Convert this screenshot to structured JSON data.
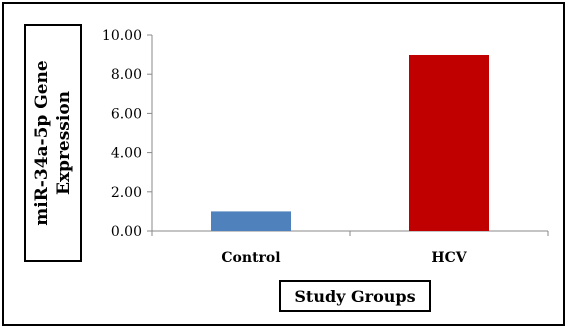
{
  "chart_data": {
    "type": "bar",
    "title": "",
    "xlabel": "Study Groups",
    "ylabel_lines": [
      "miR-34a-5p Gene",
      "Expression"
    ],
    "categories": [
      "Control",
      "HCV"
    ],
    "values": [
      1.0,
      8.98
    ],
    "bar_colors": [
      "#4f81bd",
      "#c00000"
    ],
    "ylim": [
      0,
      10
    ],
    "yticks": [
      "0.00",
      "2.00",
      "4.00",
      "6.00",
      "8.00",
      "10.00"
    ],
    "grid": false,
    "legend": "none"
  }
}
